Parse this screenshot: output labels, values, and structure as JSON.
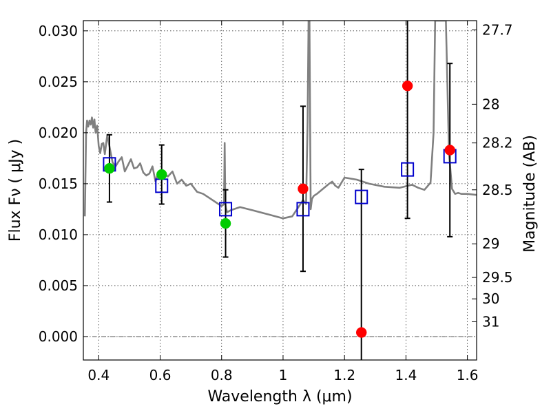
{
  "chart_data": {
    "type": "scatter",
    "title": "",
    "xlabel": "Wavelength  λ (μm)",
    "ylabel": "Flux  Fν  ( μJy )",
    "y2label": "Magnitude (AB)",
    "xlim": [
      0.35,
      1.63
    ],
    "ylim": [
      -0.0023,
      0.031
    ],
    "grid": true,
    "x_ticks": [
      0.4,
      0.6,
      0.8,
      1.0,
      1.2,
      1.4,
      1.6
    ],
    "x_tick_labels": [
      "0.4",
      "0.6",
      "0.8",
      "1",
      "1.2",
      "1.4",
      "1.6"
    ],
    "y_ticks": [
      0.0,
      0.005,
      0.01,
      0.015,
      0.02,
      0.025,
      0.03
    ],
    "y_tick_labels": [
      "0.000",
      "0.005",
      "0.010",
      "0.015",
      "0.020",
      "0.025",
      "0.030"
    ],
    "y2_ticks": [
      {
        "label": "27.7",
        "flux": 0.0301
      },
      {
        "label": "28",
        "flux": 0.0228
      },
      {
        "label": "28.2",
        "flux": 0.019
      },
      {
        "label": "28.5",
        "flux": 0.0144
      },
      {
        "label": "29",
        "flux": 0.0091
      },
      {
        "label": "29.5",
        "flux": 0.0058
      },
      {
        "label": "30",
        "flux": 0.0037
      },
      {
        "label": "31",
        "flux": 0.00145
      }
    ],
    "colors": {
      "sed": "#808080",
      "model": "#0000cc",
      "green": "#00cc00",
      "red": "#ff0000",
      "errorbar": "#000000"
    },
    "sed_line": {
      "name": "SED template",
      "x": [
        0.355,
        0.359,
        0.362,
        0.366,
        0.37,
        0.374,
        0.378,
        0.382,
        0.386,
        0.39,
        0.395,
        0.4,
        0.405,
        0.41,
        0.415,
        0.42,
        0.428,
        0.436,
        0.445,
        0.455,
        0.465,
        0.475,
        0.485,
        0.495,
        0.505,
        0.515,
        0.525,
        0.535,
        0.545,
        0.555,
        0.565,
        0.575,
        0.585,
        0.595,
        0.605,
        0.615,
        0.625,
        0.64,
        0.655,
        0.67,
        0.685,
        0.7,
        0.72,
        0.74,
        0.76,
        0.78,
        0.8,
        0.808,
        0.81,
        0.812,
        0.814,
        0.818,
        0.83,
        0.86,
        0.9,
        0.95,
        1.0,
        1.03,
        1.05,
        1.065,
        1.075,
        1.08,
        1.083,
        1.086,
        1.09,
        1.094,
        1.1,
        1.11,
        1.13,
        1.15,
        1.16,
        1.17,
        1.18,
        1.2,
        1.24,
        1.28,
        1.33,
        1.38,
        1.42,
        1.44,
        1.46,
        1.48,
        1.49,
        1.495,
        1.5,
        1.51,
        1.52,
        1.53,
        1.54,
        1.55,
        1.56,
        1.57,
        1.58,
        1.6,
        1.63
      ],
      "y": [
        0.0118,
        0.02,
        0.0212,
        0.0206,
        0.0212,
        0.0208,
        0.0215,
        0.0205,
        0.0213,
        0.02,
        0.0207,
        0.0187,
        0.018,
        0.0189,
        0.019,
        0.0179,
        0.0198,
        0.0185,
        0.0171,
        0.0167,
        0.0172,
        0.0176,
        0.0162,
        0.0168,
        0.0174,
        0.0165,
        0.0166,
        0.017,
        0.0161,
        0.0158,
        0.016,
        0.0167,
        0.0152,
        0.0162,
        0.0158,
        0.016,
        0.0157,
        0.0162,
        0.015,
        0.0154,
        0.0148,
        0.015,
        0.0142,
        0.014,
        0.0136,
        0.0132,
        0.0128,
        0.013,
        0.019,
        0.0131,
        0.0126,
        0.0122,
        0.0124,
        0.0127,
        0.0124,
        0.012,
        0.0116,
        0.0118,
        0.0127,
        0.0134,
        0.013,
        0.021,
        0.031,
        0.031,
        0.0125,
        0.0135,
        0.0138,
        0.014,
        0.0145,
        0.015,
        0.0152,
        0.0148,
        0.0146,
        0.0156,
        0.0154,
        0.015,
        0.0147,
        0.0146,
        0.0149,
        0.0146,
        0.0144,
        0.0151,
        0.02,
        0.031,
        0.031,
        0.031,
        0.031,
        0.031,
        0.018,
        0.0145,
        0.014,
        0.0141,
        0.014,
        0.014,
        0.0139
      ]
    },
    "series": [
      {
        "name": "Model photometry (open squares)",
        "marker": "square",
        "x": [
          0.435,
          0.605,
          0.813,
          1.065,
          1.255,
          1.405,
          1.543
        ],
        "values": [
          0.0169,
          0.0148,
          0.0125,
          0.0125,
          0.0137,
          0.0164,
          0.0177
        ]
      },
      {
        "name": "Observed (green)",
        "marker": "circle",
        "x": [
          0.435,
          0.605,
          0.813
        ],
        "values": [
          0.0165,
          0.0159,
          0.0111
        ],
        "errors": [
          0.0033,
          0.0029,
          0.0033
        ]
      },
      {
        "name": "Observed (red)",
        "marker": "circle",
        "x": [
          1.065,
          1.255,
          1.405,
          1.543
        ],
        "values": [
          0.0145,
          0.0004,
          0.0246,
          0.0183
        ],
        "errors": [
          0.0081,
          0.016,
          0.013,
          0.0085
        ]
      }
    ]
  }
}
